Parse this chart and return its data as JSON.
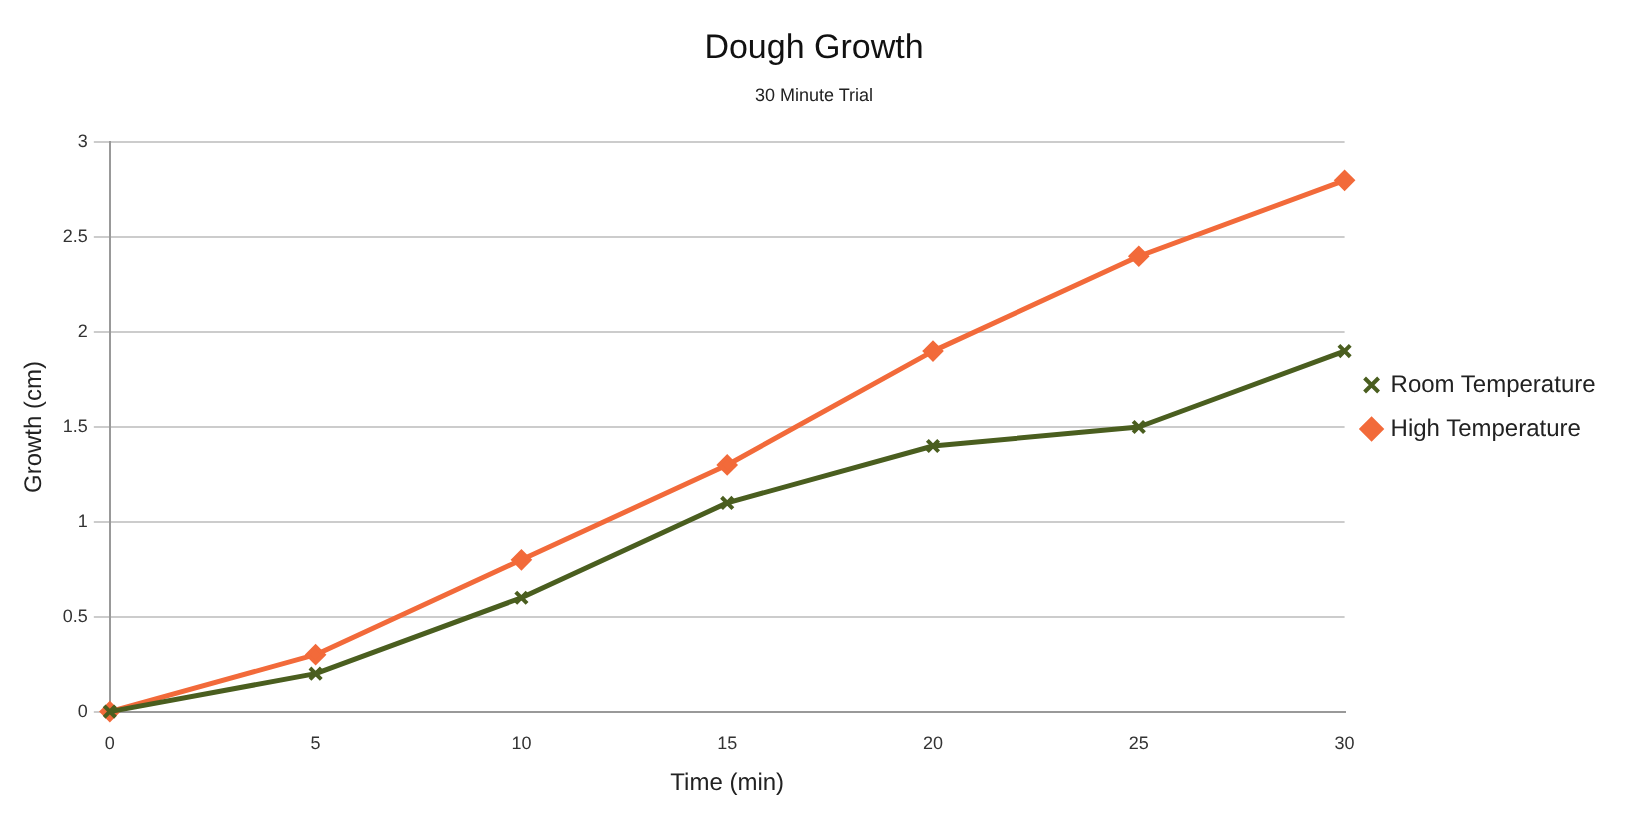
{
  "chart_data": {
    "type": "line",
    "title": "Dough Growth",
    "subtitle": "30 Minute Trial",
    "xlabel": "Time (min)",
    "ylabel": "Growth (cm)",
    "x": [
      0,
      5,
      10,
      15,
      20,
      25,
      30
    ],
    "series": [
      {
        "name": "Room Temperature",
        "color": "#4a5e1f",
        "marker": "cross",
        "values": [
          0,
          0.2,
          0.6,
          1.1,
          1.4,
          1.5,
          1.9
        ]
      },
      {
        "name": "High Temperature",
        "color": "#f26a3a",
        "marker": "diamond",
        "values": [
          0,
          0.3,
          0.8,
          1.3,
          1.9,
          2.4,
          2.8
        ]
      }
    ],
    "xlim": [
      0,
      30
    ],
    "xticks": [
      0,
      5,
      10,
      15,
      20,
      25,
      30
    ],
    "ylim": [
      0,
      3
    ],
    "yticks": [
      0,
      0.5,
      1,
      1.5,
      2,
      2.5,
      3
    ],
    "grid": "y",
    "legend": "right",
    "line_style": "solid"
  }
}
